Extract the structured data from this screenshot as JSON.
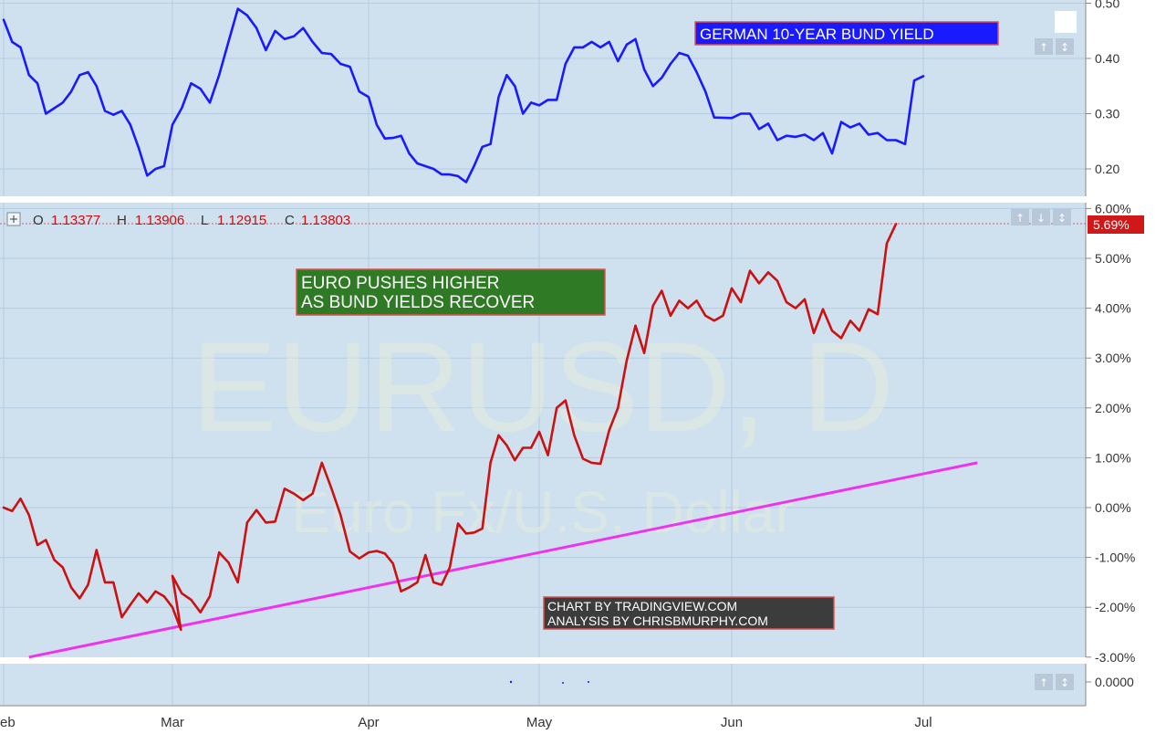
{
  "chart_data": [
    {
      "type": "line",
      "panel": "top",
      "title": "GERMAN 10-YEAR BUND YIELD",
      "ylim": [
        0.15,
        0.5
      ],
      "y_ticks": [
        "0.20",
        "0.30",
        "0.40",
        "0.50"
      ],
      "grid": true,
      "series": [
        {
          "color": "#1a1aff",
          "points": [
            [
              "Feb 1",
              0.47
            ],
            [
              "Feb 2",
              0.43
            ],
            [
              "Feb 3",
              0.42
            ],
            [
              "Feb 4",
              0.37
            ],
            [
              "Feb 5",
              0.355
            ],
            [
              "Feb 6",
              0.3
            ],
            [
              "Feb 7",
              0.31
            ],
            [
              "Feb 8",
              0.32
            ],
            [
              "Feb 9",
              0.34
            ],
            [
              "Feb 10",
              0.37
            ],
            [
              "Feb 11",
              0.375
            ],
            [
              "Feb 12",
              0.35
            ],
            [
              "Feb 13",
              0.305
            ],
            [
              "Feb 14",
              0.298
            ],
            [
              "Feb 15",
              0.305
            ],
            [
              "Feb 16",
              0.28
            ],
            [
              "Feb 17",
              0.238
            ],
            [
              "Feb 18",
              0.188
            ],
            [
              "Feb 19",
              0.2
            ],
            [
              "Feb 20",
              0.205
            ],
            [
              "Mar 1",
              0.28
            ],
            [
              "Mar 2",
              0.31
            ],
            [
              "Mar 3",
              0.355
            ],
            [
              "Mar 4",
              0.345
            ],
            [
              "Mar 5",
              0.32
            ],
            [
              "Mar 6",
              0.37
            ],
            [
              "Mar 7",
              0.43
            ],
            [
              "Mar 8",
              0.49
            ],
            [
              "Mar 9",
              0.478
            ],
            [
              "Mar 10",
              0.455
            ],
            [
              "Mar 11",
              0.415
            ],
            [
              "Mar 12",
              0.45
            ],
            [
              "Mar 13",
              0.435
            ],
            [
              "Mar 14",
              0.44
            ],
            [
              "Mar 15",
              0.455
            ],
            [
              "Mar 16",
              0.43
            ],
            [
              "Mar 17",
              0.41
            ],
            [
              "Mar 18",
              0.408
            ],
            [
              "Mar 19",
              0.39
            ],
            [
              "Mar 20",
              0.385
            ],
            [
              "Mar 21",
              0.34
            ],
            [
              "Mar 22",
              0.33
            ],
            [
              "Apr 1",
              0.33
            ],
            [
              "Apr 2",
              0.28
            ],
            [
              "Apr 3",
              0.255
            ],
            [
              "Apr 4",
              0.256
            ],
            [
              "Apr 5",
              0.26
            ],
            [
              "Apr 6",
              0.228
            ],
            [
              "Apr 7",
              0.21
            ],
            [
              "Apr 8",
              0.205
            ],
            [
              "Apr 9",
              0.2
            ],
            [
              "Apr 10",
              0.19
            ],
            [
              "Apr 11",
              0.19
            ],
            [
              "Apr 12",
              0.187
            ],
            [
              "Apr 13",
              0.176
            ],
            [
              "Apr 14",
              0.206
            ],
            [
              "Apr 15",
              0.24
            ],
            [
              "Apr 16",
              0.245
            ],
            [
              "Apr 17",
              0.33
            ],
            [
              "Apr 18",
              0.37
            ],
            [
              "Apr 19",
              0.35
            ],
            [
              "Apr 20",
              0.3
            ],
            [
              "Apr 21",
              0.32
            ],
            [
              "May 1",
              0.315
            ],
            [
              "May 2",
              0.325
            ],
            [
              "May 3",
              0.325
            ],
            [
              "May 4",
              0.39
            ],
            [
              "May 5",
              0.42
            ],
            [
              "May 6",
              0.42
            ],
            [
              "May 7",
              0.43
            ],
            [
              "May 8",
              0.42
            ],
            [
              "May 9",
              0.43
            ],
            [
              "May 10",
              0.395
            ],
            [
              "May 11",
              0.425
            ],
            [
              "May 12",
              0.435
            ],
            [
              "May 13",
              0.38
            ],
            [
              "May 14",
              0.35
            ],
            [
              "May 15",
              0.365
            ],
            [
              "May 16",
              0.39
            ],
            [
              "May 17",
              0.41
            ],
            [
              "May 18",
              0.405
            ],
            [
              "May 19",
              0.375
            ],
            [
              "May 20",
              0.34
            ],
            [
              "May 21",
              0.293
            ],
            [
              "Jun 1",
              0.292
            ],
            [
              "Jun 2",
              0.3
            ],
            [
              "Jun 3",
              0.3
            ],
            [
              "Jun 4",
              0.272
            ],
            [
              "Jun 5",
              0.282
            ],
            [
              "Jun 6",
              0.252
            ],
            [
              "Jun 7",
              0.26
            ],
            [
              "Jun 8",
              0.258
            ],
            [
              "Jun 9",
              0.262
            ],
            [
              "Jun 10",
              0.252
            ],
            [
              "Jun 11",
              0.265
            ],
            [
              "Jun 12",
              0.228
            ],
            [
              "Jun 13",
              0.285
            ],
            [
              "Jun 14",
              0.275
            ],
            [
              "Jun 15",
              0.282
            ],
            [
              "Jun 16",
              0.262
            ],
            [
              "Jun 17",
              0.265
            ],
            [
              "Jun 18",
              0.252
            ],
            [
              "Jun 19",
              0.252
            ],
            [
              "Jun 20",
              0.245
            ],
            [
              "Jun 21",
              0.36
            ],
            [
              "Jun 22",
              0.368
            ]
          ]
        }
      ]
    },
    {
      "type": "line",
      "panel": "main",
      "title": "EURUSD, D",
      "subtitle": "Euro Fx/U.S. Dollar",
      "ohlc": {
        "o_label": "O",
        "o": "1.13377",
        "h_label": "H",
        "h": "1.13906",
        "l_label": "L",
        "l": "1.12915",
        "c_label": "C",
        "c": "1.13803"
      },
      "last_value_label": "5.69%",
      "ylim": [
        -3.0,
        6.0
      ],
      "y_ticks": [
        "6.00%",
        "5.00%",
        "4.00%",
        "3.00%",
        "2.00%",
        "1.00%",
        "0.00%",
        "-1.00%",
        "-2.00%",
        "-3.00%"
      ],
      "grid": true,
      "series": [
        {
          "color": "#cc1111",
          "points": [
            [
              "Feb 1",
              0.0
            ],
            [
              "Feb 2",
              -0.07
            ],
            [
              "Feb 3",
              0.18
            ],
            [
              "Feb 4",
              -0.15
            ],
            [
              "Feb 5",
              -0.75
            ],
            [
              "Feb 6",
              -0.65
            ],
            [
              "Feb 7",
              -1.05
            ],
            [
              "Feb 8",
              -1.2
            ],
            [
              "Feb 9",
              -1.6
            ],
            [
              "Feb 10",
              -1.82
            ],
            [
              "Feb 11",
              -1.55
            ],
            [
              "Feb 12",
              -0.85
            ],
            [
              "Feb 13",
              -1.5
            ],
            [
              "Feb 14",
              -1.5
            ],
            [
              "Feb 15",
              -2.2
            ],
            [
              "Feb 16",
              -1.95
            ],
            [
              "Feb 17",
              -1.72
            ],
            [
              "Feb 18",
              -1.9
            ],
            [
              "Feb 19",
              -1.68
            ],
            [
              "Feb 20",
              -1.78
            ],
            [
              "Feb 21",
              -2.0
            ],
            [
              "Feb 22",
              -2.45
            ],
            [
              "Mar 1",
              -1.37
            ],
            [
              "Mar 2",
              -1.72
            ],
            [
              "Mar 3",
              -1.85
            ],
            [
              "Mar 4",
              -2.1
            ],
            [
              "Mar 5",
              -1.78
            ],
            [
              "Mar 6",
              -0.9
            ],
            [
              "Mar 7",
              -1.1
            ],
            [
              "Mar 8",
              -1.5
            ],
            [
              "Mar 9",
              -0.3
            ],
            [
              "Mar 10",
              -0.05
            ],
            [
              "Mar 11",
              -0.3
            ],
            [
              "Mar 12",
              -0.28
            ],
            [
              "Mar 13",
              0.38
            ],
            [
              "Mar 14",
              0.28
            ],
            [
              "Mar 15",
              0.15
            ],
            [
              "Mar 16",
              0.28
            ],
            [
              "Mar 17",
              0.9
            ],
            [
              "Mar 18",
              0.4
            ],
            [
              "Mar 19",
              -0.15
            ],
            [
              "Mar 20",
              -0.88
            ],
            [
              "Mar 21",
              -1.02
            ],
            [
              "Apr 1",
              -0.9
            ],
            [
              "Apr 2",
              -0.87
            ],
            [
              "Apr 3",
              -0.92
            ],
            [
              "Apr 4",
              -1.12
            ],
            [
              "Apr 5",
              -1.68
            ],
            [
              "Apr 6",
              -1.6
            ],
            [
              "Apr 7",
              -1.5
            ],
            [
              "Apr 8",
              -0.95
            ],
            [
              "Apr 9",
              -1.5
            ],
            [
              "Apr 10",
              -1.55
            ],
            [
              "Apr 11",
              -1.2
            ],
            [
              "Apr 12",
              -0.32
            ],
            [
              "Apr 13",
              -0.52
            ],
            [
              "Apr 14",
              -0.5
            ],
            [
              "Apr 15",
              -0.42
            ],
            [
              "Apr 16",
              0.9
            ],
            [
              "Apr 17",
              1.45
            ],
            [
              "Apr 18",
              1.25
            ],
            [
              "Apr 19",
              0.95
            ],
            [
              "Apr 20",
              1.2
            ],
            [
              "Apr 21",
              1.2
            ],
            [
              "May 1",
              1.52
            ],
            [
              "May 2",
              1.05
            ],
            [
              "May 3",
              2.0
            ],
            [
              "May 4",
              2.15
            ],
            [
              "May 5",
              1.45
            ],
            [
              "May 6",
              0.98
            ],
            [
              "May 7",
              0.9
            ],
            [
              "May 8",
              0.88
            ],
            [
              "May 9",
              1.55
            ],
            [
              "May 10",
              2.0
            ],
            [
              "May 11",
              2.95
            ],
            [
              "May 12",
              3.65
            ],
            [
              "May 13",
              3.1
            ],
            [
              "May 14",
              4.05
            ],
            [
              "May 15",
              4.35
            ],
            [
              "May 16",
              3.85
            ],
            [
              "May 17",
              4.15
            ],
            [
              "May 18",
              4.0
            ],
            [
              "May 19",
              4.15
            ],
            [
              "May 20",
              3.85
            ],
            [
              "May 21",
              3.75
            ],
            [
              "May 22",
              3.85
            ],
            [
              "Jun 1",
              4.4
            ],
            [
              "Jun 2",
              4.12
            ],
            [
              "Jun 3",
              4.75
            ],
            [
              "Jun 4",
              4.5
            ],
            [
              "Jun 5",
              4.72
            ],
            [
              "Jun 6",
              4.55
            ],
            [
              "Jun 7",
              4.12
            ],
            [
              "Jun 8",
              4.0
            ],
            [
              "Jun 9",
              4.18
            ],
            [
              "Jun 10",
              3.5
            ],
            [
              "Jun 11",
              3.98
            ],
            [
              "Jun 12",
              3.55
            ],
            [
              "Jun 13",
              3.4
            ],
            [
              "Jun 14",
              3.75
            ],
            [
              "Jun 15",
              3.55
            ],
            [
              "Jun 16",
              3.98
            ],
            [
              "Jun 17",
              3.88
            ],
            [
              "Jun 18",
              5.3
            ],
            [
              "Jun 19",
              5.69
            ]
          ]
        }
      ],
      "trendline": {
        "color": "#ee33ee",
        "from": [
          "Feb 4",
          -3.0
        ],
        "to": [
          "Jul 8",
          0.9
        ]
      }
    },
    {
      "type": "line",
      "panel": "bottom",
      "y_ticks": [
        "0.0000"
      ]
    }
  ],
  "x_ticks": [
    "Feb",
    "Mar",
    "Apr",
    "May",
    "Jun",
    "Jul"
  ],
  "annotations": {
    "bund_label": "GERMAN 10-YEAR BUND YIELD",
    "euro_line1": "EURO PUSHES HIGHER",
    "euro_line2": "AS BUND YIELDS RECOVER",
    "credit_line1": "CHART BY TRADINGVIEW.COM",
    "credit_line2": "ANALYSIS BY CHRISBMURPHY.COM",
    "watermark_symbol": "EURUSD, D",
    "watermark_name": "Euro Fx/U.S. Dollar"
  },
  "colors": {
    "panel_bg": "#cfe0ef",
    "grid": "#b3cde3",
    "bund_line": "#1a1aff",
    "euro_line": "#cc1111",
    "trendline": "#ee33ee",
    "bund_box": "#1a1aff",
    "euro_box": "#2f7a24",
    "credit_box": "#3c3c3c",
    "last_value_bg": "#d01818"
  }
}
